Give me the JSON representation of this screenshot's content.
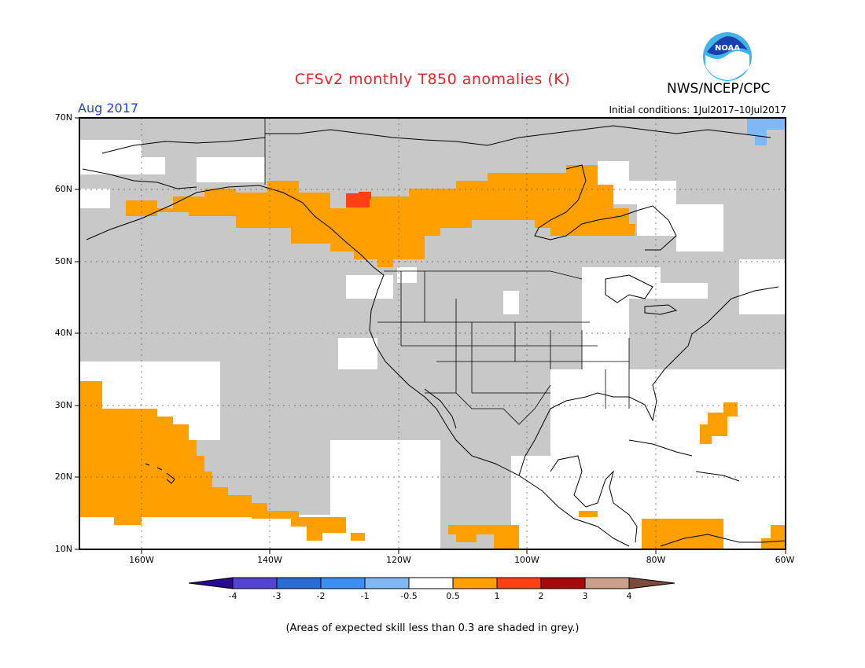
{
  "header": {
    "title": "CFSv2 monthly T850 anomalies (K)",
    "agency": "NWS/NCEP/CPC",
    "logo_text": "NOAA",
    "month": "Aug 2017",
    "initial_conditions": "Initial conditions: 1Jul2017–10Jul2017"
  },
  "axes": {
    "lat_labels": [
      "70N",
      "60N",
      "50N",
      "40N",
      "30N",
      "20N",
      "10N"
    ],
    "lon_labels": [
      "160W",
      "140W",
      "120W",
      "100W",
      "80W",
      "60W"
    ]
  },
  "colorbar": {
    "labels": [
      "-4",
      "-3",
      "-2",
      "-1",
      "-0.5",
      "0.5",
      "1",
      "2",
      "3",
      "4"
    ],
    "colors": [
      "#2a0a8c",
      "#5244d0",
      "#2a6cd4",
      "#3c8ff0",
      "#7fb8f5",
      "#ffffff",
      "#ffa000",
      "#ff4012",
      "#a50a0a",
      "#c8a08c",
      "#7a4a3c"
    ]
  },
  "colors": {
    "grey_shade": "#c8c8c8",
    "warm": "#ffa000",
    "hot": "#ff4012",
    "cool": "#7fb8f5"
  },
  "footnote": "(Areas of expected skill less than 0.3 are shaded in grey.)"
}
